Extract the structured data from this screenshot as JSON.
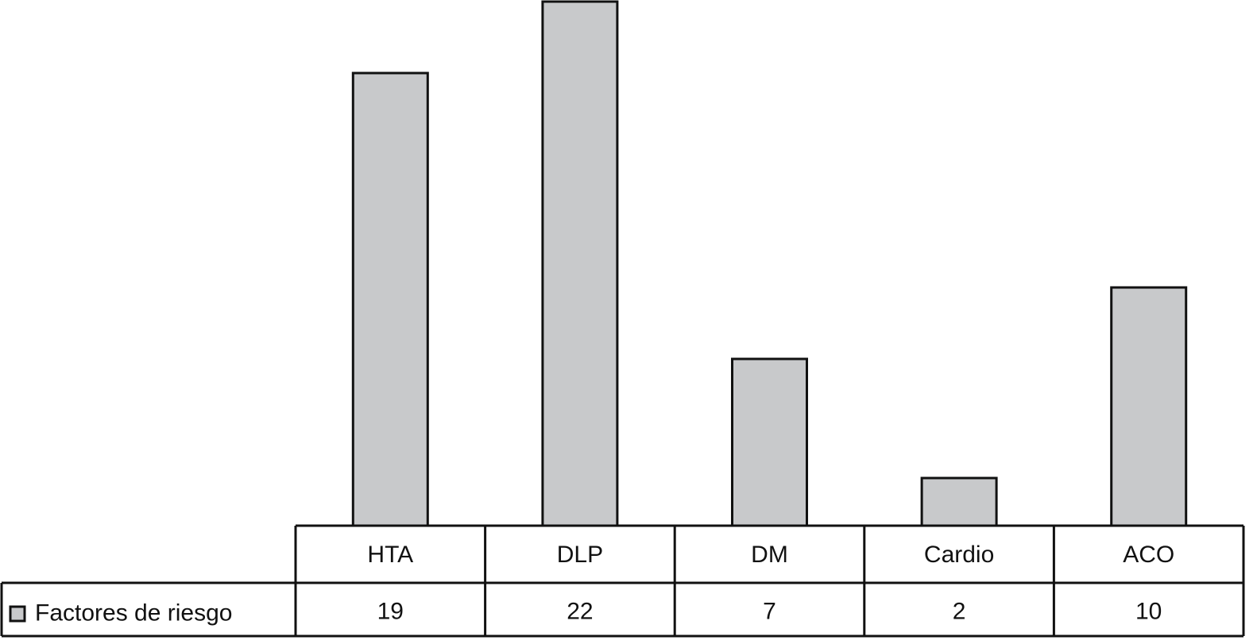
{
  "chart_data": {
    "type": "bar",
    "categories": [
      "HTA",
      "DLP",
      "DM",
      "Cardio",
      "ACO"
    ],
    "series": [
      {
        "name": "Factores de riesgo",
        "color": "#c8c9cb",
        "values": [
          19,
          22,
          7,
          2,
          10
        ]
      }
    ],
    "data_table": true
  }
}
